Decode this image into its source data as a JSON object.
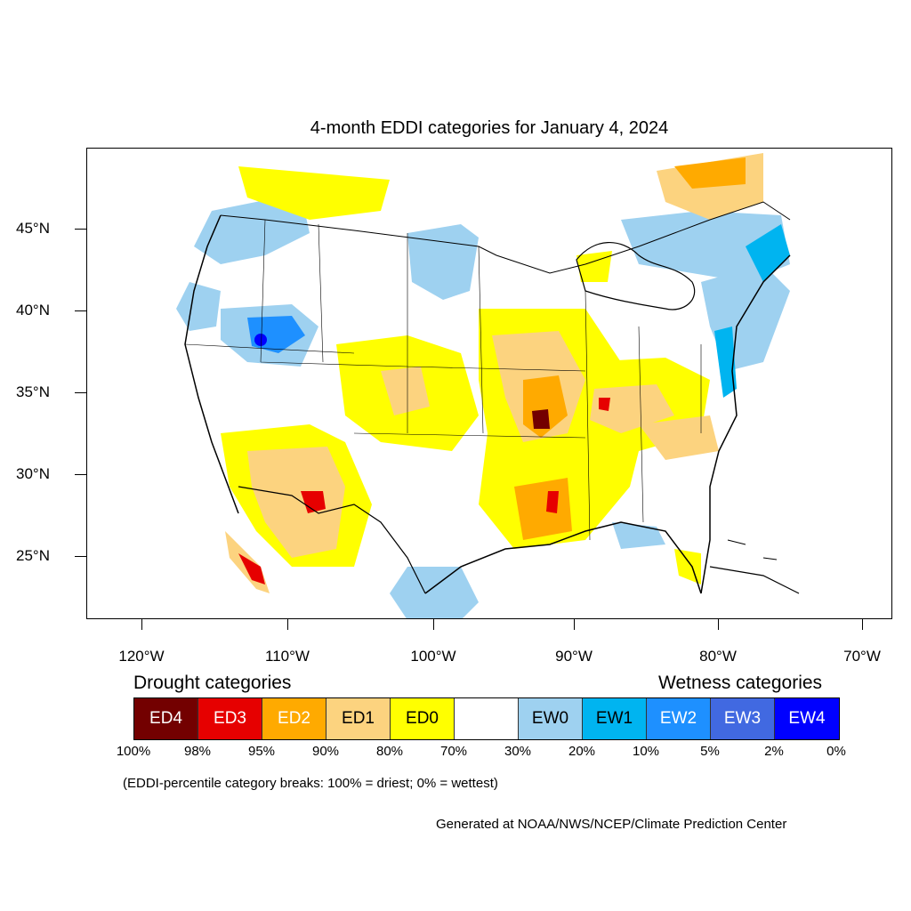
{
  "title": "4-month EDDI categories for January 4, 2024",
  "lat_labels": [
    "45°N",
    "40°N",
    "35°N",
    "30°N",
    "25°N"
  ],
  "lon_labels": [
    "120°W",
    "110°W",
    "100°W",
    "90°W",
    "80°W",
    "70°W"
  ],
  "legend": {
    "drought_heading": "Drought categories",
    "wetness_heading": "Wetness categories",
    "categories": [
      {
        "label": "ED4",
        "color": "#730000",
        "text_color": "#ffffff"
      },
      {
        "label": "ED3",
        "color": "#e60000",
        "text_color": "#ffffff"
      },
      {
        "label": "ED2",
        "color": "#ffaa00",
        "text_color": "#ffffff"
      },
      {
        "label": "ED1",
        "color": "#fcd37f",
        "text_color": "#000000"
      },
      {
        "label": "ED0",
        "color": "#ffff00",
        "text_color": "#000000"
      },
      {
        "label": "",
        "color": "#ffffff",
        "text_color": "#000000"
      },
      {
        "label": "EW0",
        "color": "#9ed1f0",
        "text_color": "#000000"
      },
      {
        "label": "EW1",
        "color": "#00b4f0",
        "text_color": "#000000"
      },
      {
        "label": "EW2",
        "color": "#1e90ff",
        "text_color": "#ffffff"
      },
      {
        "label": "EW3",
        "color": "#4169e1",
        "text_color": "#ffffff"
      },
      {
        "label": "EW4",
        "color": "#0000ff",
        "text_color": "#ffffff"
      }
    ],
    "breaks": [
      "100%",
      "98%",
      "95%",
      "90%",
      "80%",
      "70%",
      "30%",
      "20%",
      "10%",
      "5%",
      "2%",
      "0%"
    ]
  },
  "note": "(EDDI-percentile category breaks: 100% = driest; 0% = wettest)",
  "credit": "Generated at NOAA/NWS/NCEP/Climate Prediction Center"
}
